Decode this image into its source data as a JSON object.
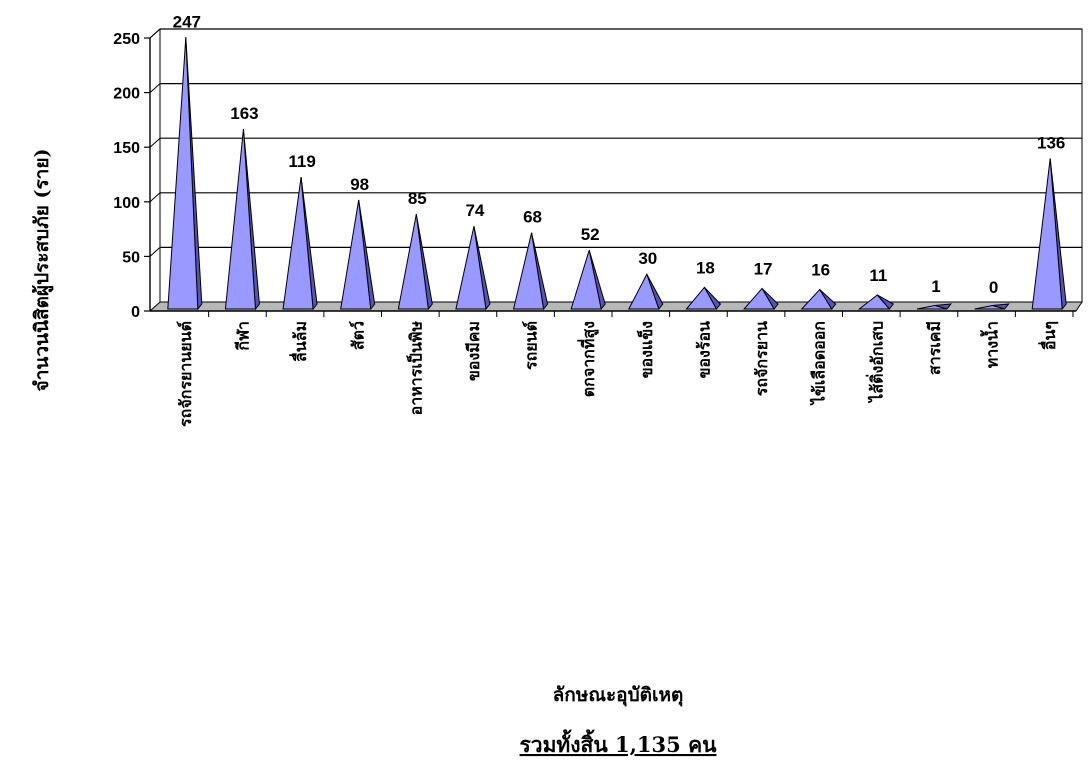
{
  "chart_data": {
    "type": "bar",
    "categories": [
      "รถจักรยานยนต์",
      "กีฬา",
      "ลื่นล้ม",
      "สัตว์",
      "อาหารเป็นพิษ",
      "ของมีคม",
      "รถยนต์",
      "ตกจากที่สูง",
      "ของแข็ง",
      "ของร้อน",
      "รถจักรยาน",
      "ไข้เลือดออก",
      "ไส้ติ่งอักเสบ",
      "สารเคมี",
      "ทางน้ำ",
      "อื่นๆ"
    ],
    "values": [
      247,
      163,
      119,
      98,
      85,
      74,
      68,
      52,
      30,
      18,
      17,
      16,
      11,
      1,
      0,
      136
    ],
    "ylabel": "จำนวนนิสิตผู้ประสบภัย (ราย)",
    "xlabel": "ลักษณะอุบัติเหตุ",
    "ylim": [
      0,
      250
    ],
    "yticks": [
      0,
      50,
      100,
      150,
      200,
      250
    ],
    "grid": true,
    "total_label": "รวมทั้งสิ้น 1,135 คน",
    "colors": {
      "bar_face": "#9999ff",
      "bar_side": "#5555b8",
      "floor": "#b8b8b8",
      "gridline": "#000000"
    }
  }
}
